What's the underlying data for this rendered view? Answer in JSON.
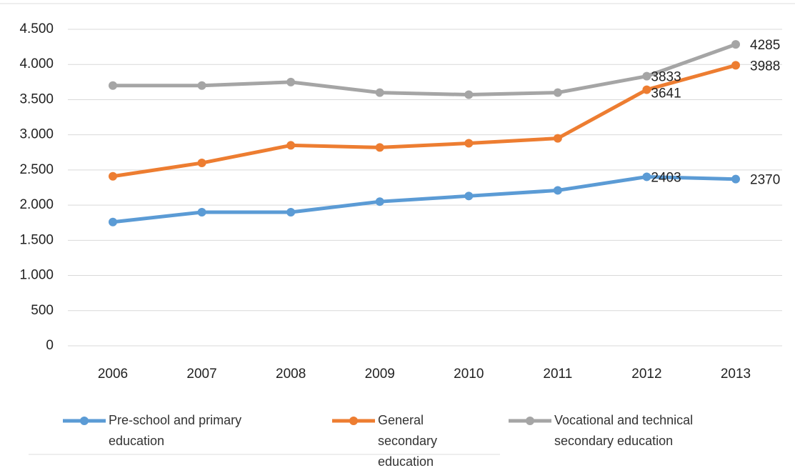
{
  "chart_data": {
    "type": "line",
    "categories": [
      "2006",
      "2007",
      "2008",
      "2009",
      "2010",
      "2011",
      "2012",
      "2013"
    ],
    "series": [
      {
        "name": "Pre-school and primary education",
        "color": "#5b9bd5",
        "values": [
          1760,
          1900,
          1900,
          2050,
          2130,
          2210,
          2403,
          2370
        ],
        "value_labels": [
          null,
          null,
          null,
          null,
          null,
          null,
          "2403",
          "2370"
        ]
      },
      {
        "name": "General secondary education",
        "color": "#ed7d31",
        "values": [
          2410,
          2600,
          2850,
          2820,
          2880,
          2950,
          3641,
          3988
        ],
        "value_labels": [
          null,
          null,
          null,
          null,
          null,
          null,
          "3641",
          "3988"
        ]
      },
      {
        "name": "Vocational and technical secondary education",
        "color": "#a5a5a5",
        "values": [
          3700,
          3700,
          3750,
          3600,
          3570,
          3600,
          3833,
          4285
        ],
        "value_labels": [
          null,
          null,
          null,
          null,
          null,
          null,
          "3833",
          "4285"
        ]
      }
    ],
    "ylim": [
      0,
      4500
    ],
    "yticks": [
      0,
      500,
      {
        "value": 1000,
        "label": "1.000"
      },
      {
        "value": 1500,
        "label": "1.500"
      },
      {
        "value": 2000,
        "label": "2.000"
      },
      {
        "value": 2500,
        "label": "2.500"
      },
      {
        "value": 3000,
        "label": "3.000"
      },
      {
        "value": 3500,
        "label": "3.500"
      },
      {
        "value": 4000,
        "label": "4.000"
      },
      {
        "value": 4500,
        "label": "4.500"
      }
    ],
    "grid": true,
    "legend": "bottom"
  }
}
